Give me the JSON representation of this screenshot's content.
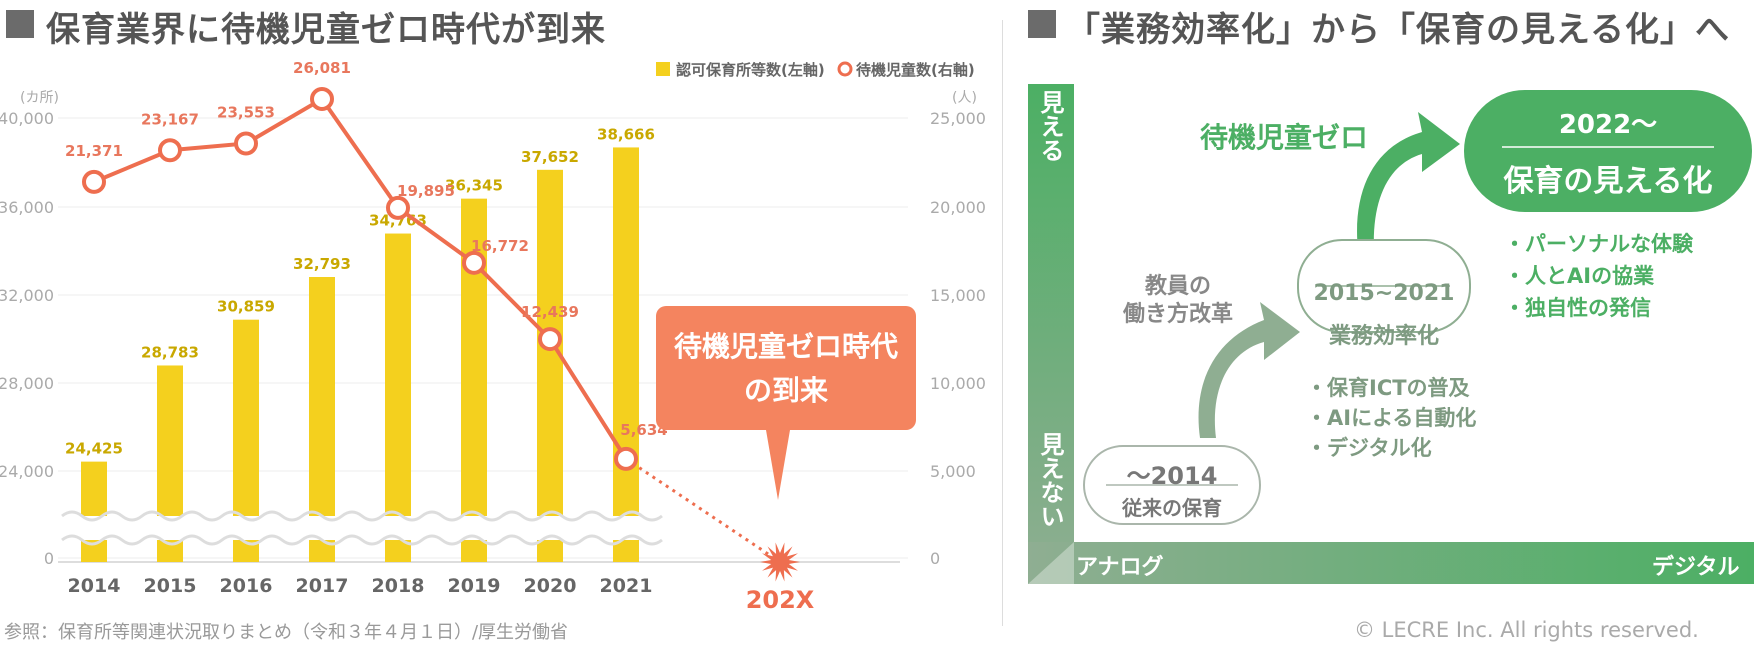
{
  "left_panel": {
    "heading": "保育業界に待機児童ゼロ時代が到来",
    "callout": {
      "line1": "待機児童ゼロ時代",
      "line2": "の到来",
      "color": "#f4845f"
    },
    "future_label": "202X",
    "source": "参照：保育所等関連状況取りまとめ（令和３年４月１日）/厚生労働省"
  },
  "right_panel": {
    "heading": "「業務効率化」から「保育の見える化」へ",
    "y_top": "見える",
    "y_bottom": "見えない",
    "x_left": "アナログ",
    "x_right": "デジタル",
    "stage1": {
      "title": "〜2014",
      "subtitle": "従来の保育"
    },
    "arrow1_label": {
      "line1": "教員の",
      "line2": "働き方改革"
    },
    "stage2": {
      "title": "2015~2021",
      "subtitle": "業務効率化"
    },
    "stage2_bullets": [
      "・保育ICTの普及",
      "・AIによる自動化",
      "・デジタル化"
    ],
    "arrow2_label": "待機児童ゼロ",
    "stage3": {
      "title": "2022〜",
      "subtitle": "保育の見える化"
    },
    "stage3_bullets": [
      "・パーソナルな体験",
      "・人とAIの協業",
      "・独自性の発信"
    ],
    "accent_color": "#4caf64",
    "muted_color": "#8fae92"
  },
  "copyright": "© LECRE Inc. All rights reserved.",
  "chart_data": {
    "type": "bar",
    "categories": [
      "2014",
      "2015",
      "2016",
      "2017",
      "2018",
      "2019",
      "2020",
      "2021"
    ],
    "series": [
      {
        "name": "認可保育所等数(左軸)",
        "type": "bar",
        "axis": "left",
        "values": [
          24425,
          28783,
          30859,
          32793,
          34763,
          36345,
          37652,
          38666
        ],
        "labels": [
          "24,425",
          "28,783",
          "30,859",
          "32,793",
          "34,763",
          "36,345",
          "37,652",
          "38,666"
        ],
        "color": "#f4d01e"
      },
      {
        "name": "待機児童数(右軸)",
        "type": "line",
        "axis": "right",
        "values": [
          21371,
          23167,
          23553,
          26081,
          19895,
          16772,
          12439,
          5634
        ],
        "labels": [
          "21,371",
          "23,167",
          "23,553",
          "26,081",
          "19,895",
          "16,772",
          "12,439",
          "5,634"
        ],
        "color": "#ee6e4f"
      }
    ],
    "left_axis": {
      "unit": "(カ所)",
      "ticks": [
        "40,000",
        "36,000",
        "32,000",
        "28,000",
        "24,000",
        "0"
      ],
      "tick_values": [
        40000,
        36000,
        32000,
        28000,
        24000,
        0
      ],
      "broken": true
    },
    "right_axis": {
      "unit": "(人)",
      "ticks": [
        "25,000",
        "20,000",
        "15,000",
        "10,000",
        "5,000",
        "0"
      ],
      "tick_values": [
        25000,
        20000,
        15000,
        10000,
        5000,
        0
      ],
      "ylim": [
        0,
        25000
      ]
    },
    "grid": true,
    "legend": "top-right"
  }
}
